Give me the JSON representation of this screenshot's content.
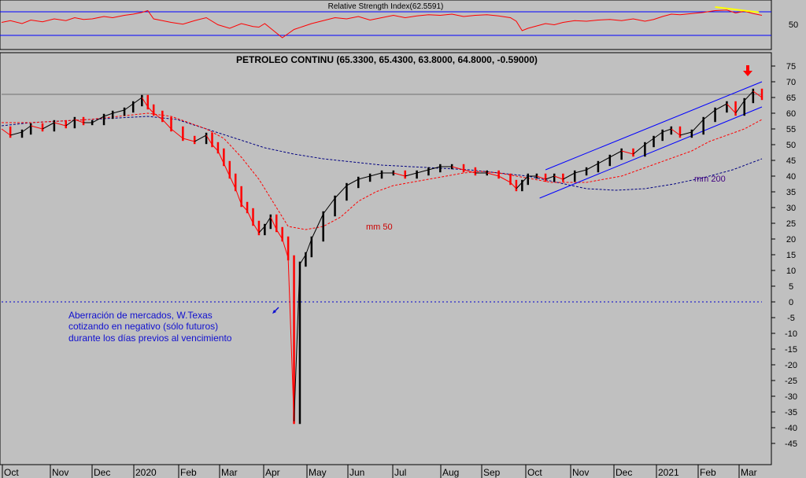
{
  "colors": {
    "background": "#c0c0c0",
    "candle_up": "#000000",
    "candle_down": "#ff0000",
    "ma50": "#ff0000",
    "ma200": "#000080",
    "channel": "#0000ff",
    "rsi_line": "#ff0000",
    "rsi_bands": "#0000ff",
    "divergence": "#ffff00",
    "annotation": "#1010d0",
    "zero_line": "#0000cc"
  },
  "chart_data": [
    {
      "type": "line",
      "title": "Relative Strength Index(62.5591)",
      "y_tick_labels": [
        "50"
      ],
      "bands": [
        30,
        70
      ],
      "ylim": [
        25,
        80
      ],
      "x": [
        0,
        3,
        7,
        10,
        14,
        18,
        22,
        25,
        28,
        31,
        35,
        38,
        42,
        45,
        48,
        50,
        52,
        55,
        58,
        62,
        66,
        70,
        74,
        78,
        82,
        86,
        88,
        90,
        93,
        96,
        98,
        100,
        103,
        106,
        110,
        114,
        118,
        122,
        126,
        130,
        134,
        138,
        142,
        146,
        150,
        154,
        158,
        162,
        166,
        170,
        174,
        176,
        178,
        180,
        183,
        186,
        189,
        192,
        196,
        200,
        204,
        208,
        212,
        216,
        220,
        223,
        226,
        229,
        232,
        236,
        240,
        244,
        248,
        251,
        254,
        257,
        260
      ],
      "values": [
        52,
        55,
        50,
        56,
        53,
        58,
        55,
        60,
        57,
        58,
        62,
        60,
        64,
        66,
        69,
        72,
        58,
        55,
        52,
        49,
        55,
        60,
        48,
        42,
        50,
        45,
        44,
        50,
        38,
        26,
        33,
        40,
        45,
        50,
        55,
        60,
        58,
        62,
        56,
        60,
        64,
        60,
        63,
        65,
        64,
        66,
        62,
        64,
        65,
        63,
        60,
        54,
        38,
        42,
        46,
        50,
        48,
        52,
        55,
        54,
        56,
        57,
        55,
        58,
        54,
        57,
        62,
        66,
        65,
        67,
        69,
        72,
        73,
        68,
        71,
        67,
        64
      ],
      "divergence": {
        "x": [
          244,
          259
        ],
        "values": [
          78,
          69
        ]
      }
    },
    {
      "type": "line",
      "title": "PETROLEO CONTINU (65.3300, 65.4300, 63.8000, 64.8000, -0.59000)",
      "xlabel": "",
      "ylabel": "",
      "x_tick_labels": [
        "Oct",
        "Nov",
        "Dec",
        "2020",
        "Feb",
        "Mar",
        "Apr",
        "May",
        "Jun",
        "Jul",
        "Aug",
        "Sep",
        "Oct",
        "Nov",
        "Dec",
        "2021",
        "Feb",
        "Mar"
      ],
      "y_tick_labels": [
        "75",
        "70",
        "65",
        "60",
        "55",
        "50",
        "45",
        "40",
        "35",
        "30",
        "25",
        "20",
        "15",
        "10",
        "5",
        "0",
        "-5",
        "-10",
        "-15",
        "-20",
        "-25",
        "-30",
        "-35",
        "-40",
        "-45"
      ],
      "ylim": [
        -48,
        78
      ],
      "grid": false,
      "x": [
        0,
        3,
        7,
        10,
        14,
        18,
        22,
        25,
        28,
        31,
        35,
        38,
        42,
        45,
        48,
        50,
        52,
        55,
        58,
        62,
        66,
        70,
        72,
        74,
        76,
        78,
        80,
        82,
        84,
        86,
        88,
        90,
        92,
        94,
        96,
        98,
        100,
        102,
        104,
        106,
        110,
        114,
        118,
        122,
        126,
        130,
        134,
        138,
        142,
        146,
        150,
        154,
        158,
        162,
        166,
        170,
        174,
        176,
        178,
        180,
        183,
        186,
        189,
        192,
        196,
        200,
        204,
        208,
        212,
        216,
        220,
        223,
        226,
        229,
        232,
        236,
        240,
        244,
        248,
        251,
        254,
        257,
        260
      ],
      "close": [
        55,
        53,
        54,
        56,
        55,
        57,
        56,
        58,
        57,
        57,
        59,
        60,
        61,
        63,
        65,
        62,
        60,
        58,
        55,
        52,
        51,
        53,
        50,
        48,
        44,
        40,
        36,
        31,
        29,
        25,
        22,
        24,
        27,
        23,
        20,
        14,
        -38,
        12,
        15,
        20,
        28,
        33,
        37,
        39,
        40,
        41,
        41,
        40,
        41,
        42,
        43,
        43,
        42,
        41,
        41,
        40,
        38,
        36,
        38,
        40,
        40,
        39,
        40,
        39,
        41,
        42,
        44,
        46,
        48,
        47,
        50,
        52,
        54,
        55,
        53,
        54,
        58,
        61,
        63,
        60,
        64,
        67,
        65
      ],
      "series": [
        {
          "name": "mm 50",
          "x": [
            0,
            10,
            20,
            30,
            40,
            50,
            58,
            64,
            70,
            76,
            82,
            88,
            94,
            98,
            104,
            110,
            116,
            122,
            128,
            134,
            140,
            146,
            152,
            158,
            164,
            170,
            176,
            182,
            188,
            194,
            200,
            206,
            212,
            218,
            224,
            230,
            236,
            242,
            248,
            254,
            260
          ],
          "values": [
            57,
            57,
            57.5,
            58,
            59,
            60,
            59,
            57,
            55,
            52,
            46,
            39,
            30,
            24,
            23,
            24,
            27,
            32,
            35,
            37,
            38,
            39,
            40,
            41,
            41.5,
            41,
            40,
            39,
            38,
            38,
            38,
            39,
            40,
            42,
            44,
            46,
            48,
            51,
            53,
            55,
            58
          ]
        },
        {
          "name": "mm 200",
          "x": [
            0,
            10,
            20,
            30,
            40,
            50,
            60,
            70,
            80,
            90,
            100,
            110,
            120,
            130,
            140,
            150,
            160,
            170,
            180,
            190,
            200,
            210,
            220,
            230,
            240,
            250,
            260
          ],
          "values": [
            56,
            57,
            57.5,
            58,
            58.5,
            59,
            58,
            55,
            52,
            49,
            47,
            45.5,
            44.5,
            43.5,
            43,
            42.5,
            42,
            41,
            40,
            38,
            36,
            35.5,
            36,
            37.5,
            39.5,
            42,
            45.5
          ]
        },
        {
          "name": "channel-top",
          "x": [
            186,
            260
          ],
          "values": [
            42,
            70
          ]
        },
        {
          "name": "channel-bottom",
          "x": [
            184,
            260
          ],
          "values": [
            33,
            62
          ]
        },
        {
          "name": "resistance",
          "x": [
            0,
            260
          ],
          "values": [
            66,
            66
          ]
        },
        {
          "name": "zero",
          "x": [
            0,
            260
          ],
          "values": [
            0,
            0
          ]
        }
      ],
      "annotations": {
        "label_mm50": "mm 50",
        "label_mm200": "mm 200",
        "note_lines": [
          "Aberración de mercados, W.Texas",
          "cotizando en negativo (sólo futuros)",
          "durante los días previos al vencimiento"
        ]
      }
    }
  ]
}
